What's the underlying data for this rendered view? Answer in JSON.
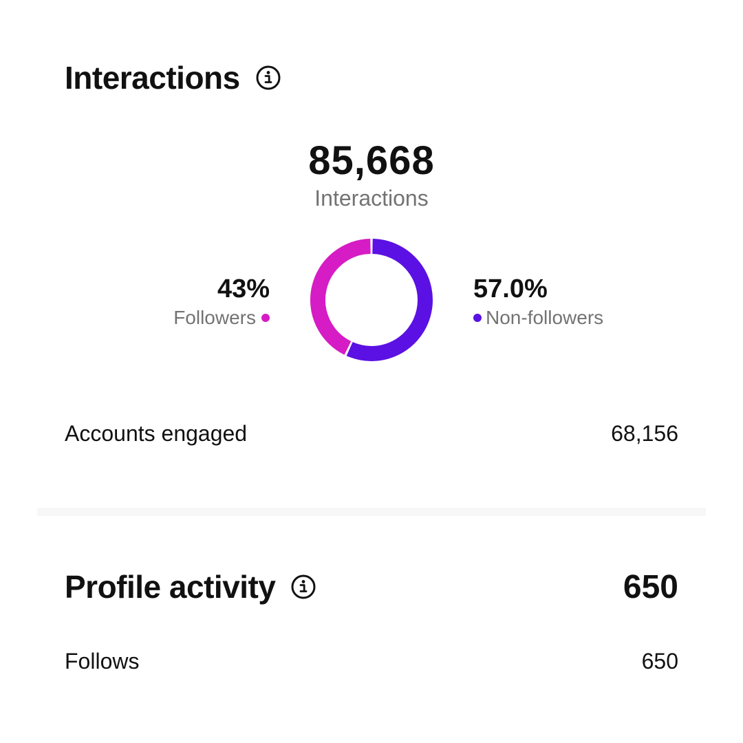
{
  "interactions": {
    "title": "Interactions",
    "total_value": "85,668",
    "total_label": "Interactions",
    "followers": {
      "percent_label": "43%",
      "label": "Followers",
      "percent": 43,
      "color": "#d61cc4"
    },
    "non_followers": {
      "percent_label": "57.0%",
      "label": "Non-followers",
      "percent": 57,
      "color": "#5b11e3"
    },
    "accounts_engaged": {
      "label": "Accounts engaged",
      "value": "68,156"
    }
  },
  "profile_activity": {
    "title": "Profile activity",
    "total": "650",
    "follows": {
      "label": "Follows",
      "value": "650"
    }
  },
  "icons": {
    "info": "info-circle-icon"
  }
}
